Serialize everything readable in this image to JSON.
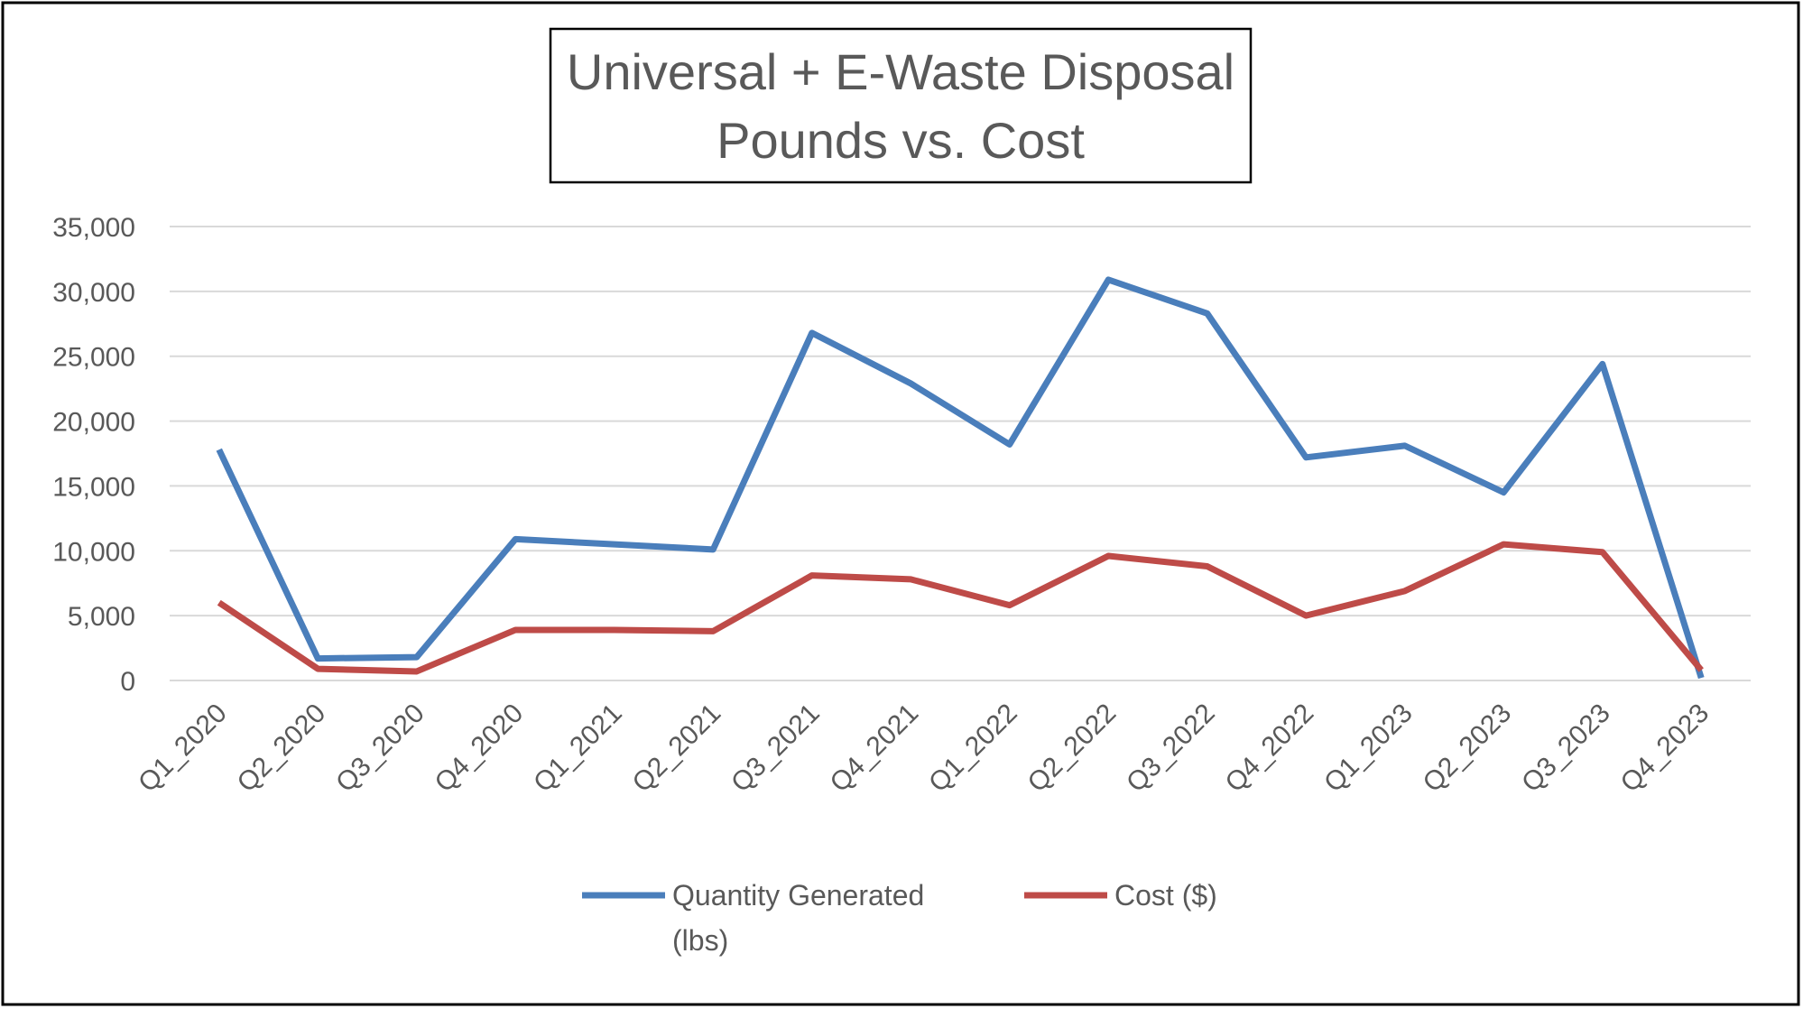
{
  "chart_data": {
    "type": "line",
    "title": [
      "Universal + E-Waste Disposal",
      "Pounds vs. Cost"
    ],
    "categories": [
      "Q1_2020",
      "Q2_2020",
      "Q3_2020",
      "Q4_2020",
      "Q1_2021",
      "Q2_2021",
      "Q3_2021",
      "Q4_2021",
      "Q1_2022",
      "Q2_2022",
      "Q3_2022",
      "Q4_2022",
      "Q1_2023",
      "Q2_2023",
      "Q3_2023",
      "Q4_2023"
    ],
    "series": [
      {
        "name": "Quantity Generated (lbs)",
        "color": "#4a7ebb",
        "values": [
          17800,
          1700,
          1800,
          10900,
          10500,
          10100,
          26800,
          22900,
          18200,
          30900,
          28300,
          17200,
          18100,
          14500,
          24400,
          200
        ]
      },
      {
        "name": "Cost ($)",
        "color": "#be4b48",
        "values": [
          6000,
          900,
          700,
          3900,
          3900,
          3800,
          8100,
          7800,
          5800,
          9600,
          8800,
          5000,
          6900,
          10500,
          9900,
          800
        ]
      }
    ],
    "ylim": [
      0,
      35000
    ],
    "yticks": [
      0,
      {
        "value": 5000,
        "label": "5,000"
      },
      {
        "value": 10000,
        "label": "10,000"
      },
      {
        "value": 15000,
        "label": "15,000"
      },
      {
        "value": 20000,
        "label": "20,000"
      },
      {
        "value": 25000,
        "label": "25,000"
      },
      {
        "value": 30000,
        "label": "30,000"
      },
      {
        "value": 35000,
        "label": "35,000"
      }
    ],
    "grid": true
  }
}
